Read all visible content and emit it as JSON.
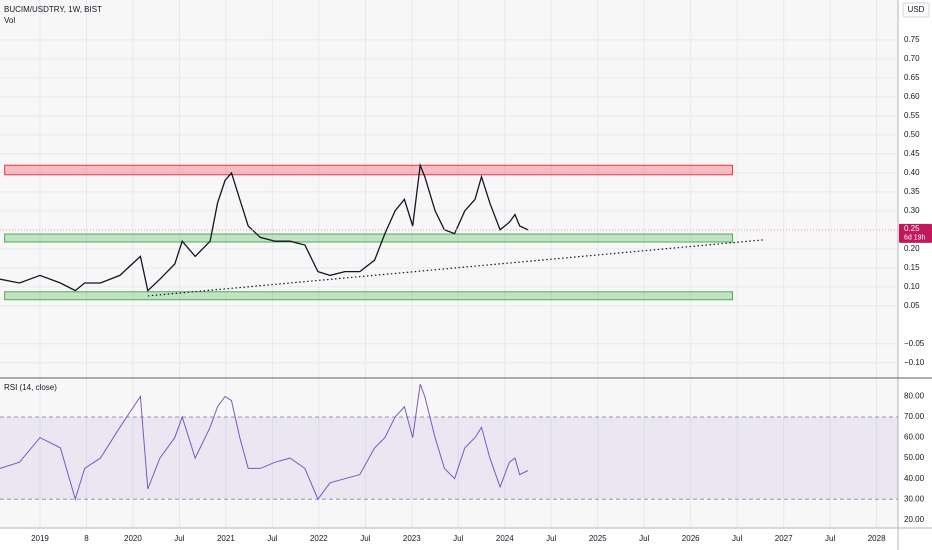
{
  "header": {
    "symbol": "BUCIM/USDTRY, 1W, BIST",
    "volume": "Vol",
    "currency": "USD"
  },
  "chart_data": [
    {
      "type": "line",
      "title": "BUCIM/USDTRY, 1W, BIST",
      "x": [
        2018.57,
        2018.78,
        2019,
        2019.22,
        2019.38,
        2019.48,
        2019.65,
        2019.86,
        2020.08,
        2020.16,
        2020.29,
        2020.45,
        2020.53,
        2020.67,
        2020.83,
        2020.91,
        2020.99,
        2021.06,
        2021.15,
        2021.24,
        2021.37,
        2021.53,
        2021.69,
        2021.85,
        2021.99,
        2022.12,
        2022.28,
        2022.44,
        2022.6,
        2022.71,
        2022.82,
        2022.92,
        2023.01,
        2023.09,
        2023.14,
        2023.25,
        2023.35,
        2023.46,
        2023.57,
        2023.68,
        2023.75,
        2023.84,
        2023.95,
        2024.05,
        2024.11,
        2024.16,
        2024.25
      ],
      "values": [
        0.12,
        0.11,
        0.13,
        0.11,
        0.09,
        0.11,
        0.11,
        0.13,
        0.18,
        0.09,
        0.12,
        0.16,
        0.22,
        0.18,
        0.22,
        0.32,
        0.38,
        0.4,
        0.33,
        0.26,
        0.23,
        0.22,
        0.22,
        0.21,
        0.14,
        0.13,
        0.14,
        0.14,
        0.17,
        0.24,
        0.3,
        0.33,
        0.26,
        0.42,
        0.39,
        0.3,
        0.25,
        0.24,
        0.3,
        0.33,
        0.39,
        0.32,
        0.25,
        0.27,
        0.29,
        0.26,
        0.25
      ],
      "color": "#131722",
      "xlim": [
        2018.57,
        2028.23
      ],
      "ylim": [
        -0.14,
        0.855
      ],
      "yticks": [
        0.75,
        {
          "value": 0.7,
          "label": "0.70"
        },
        0.65,
        {
          "value": 0.6,
          "label": "0.60"
        },
        0.55,
        {
          "value": 0.5,
          "label": "0.50"
        },
        0.45,
        {
          "value": 0.4,
          "label": "0.40"
        },
        0.35,
        {
          "value": 0.3,
          "label": "0.30"
        },
        {
          "value": 0.2,
          "label": "0.20"
        },
        0.15,
        {
          "value": 0.1,
          "label": "0.10"
        },
        0.05,
        {
          "value": -0.05,
          "label": "−0.05"
        },
        {
          "value": -0.1,
          "label": "−0.10"
        }
      ],
      "zones": [
        {
          "from": 0.395,
          "to": 0.42,
          "x": [
            2018.62,
            2026.45
          ],
          "color": "#f23645"
        },
        {
          "from": 0.218,
          "to": 0.239,
          "x": [
            2018.62,
            2026.45
          ],
          "color": "#4caf50"
        },
        {
          "from": 0.066,
          "to": 0.087,
          "x": [
            2018.62,
            2026.45
          ],
          "color": "#4caf50"
        }
      ],
      "trendline": {
        "x": [
          2020.16,
          2026.8
        ],
        "values": [
          0.076,
          0.224
        ]
      },
      "last_price": {
        "value": 0.25,
        "label": "0.25"
      },
      "countdown": "6d 19h"
    },
    {
      "type": "line",
      "title": "RSI (14, close)",
      "x": [
        2018.57,
        2018.78,
        2019,
        2019.22,
        2019.38,
        2019.48,
        2019.65,
        2019.86,
        2020.08,
        2020.16,
        2020.29,
        2020.45,
        2020.53,
        2020.67,
        2020.83,
        2020.91,
        2020.99,
        2021.06,
        2021.15,
        2021.24,
        2021.37,
        2021.53,
        2021.69,
        2021.85,
        2021.99,
        2022.12,
        2022.28,
        2022.44,
        2022.6,
        2022.71,
        2022.82,
        2022.92,
        2023.01,
        2023.09,
        2023.14,
        2023.25,
        2023.35,
        2023.46,
        2023.57,
        2023.68,
        2023.75,
        2023.84,
        2023.95,
        2024.05,
        2024.11,
        2024.16,
        2024.25
      ],
      "values": [
        45,
        48,
        60,
        55,
        30,
        45,
        50,
        65,
        80,
        35,
        50,
        60,
        70,
        50,
        65,
        75,
        80,
        78,
        60,
        45,
        45,
        48,
        50,
        45,
        30,
        38,
        40,
        42,
        55,
        60,
        70,
        75,
        60,
        86,
        80,
        60,
        45,
        40,
        55,
        60,
        65,
        50,
        36,
        48,
        50,
        42,
        44
      ],
      "color": "#7e57c2",
      "band": [
        30,
        70
      ],
      "xlim": [
        2018.57,
        2028.23
      ],
      "ylim": [
        16,
        89
      ],
      "yticks": [
        {
          "value": 80,
          "label": "80.00"
        },
        {
          "value": 70,
          "label": "70.00"
        },
        {
          "value": 60,
          "label": "60.00"
        },
        {
          "value": 50,
          "label": "50.00"
        },
        {
          "value": 40,
          "label": "40.00"
        },
        {
          "value": 30,
          "label": "30.00"
        },
        {
          "value": 20,
          "label": "20.00"
        }
      ],
      "xticks": [
        2019,
        {
          "value": 2019.5,
          "label": "8"
        },
        2020,
        {
          "value": 2020.5,
          "label": "Jul"
        },
        2021,
        {
          "value": 2021.5,
          "label": "Jul"
        },
        2022,
        {
          "value": 2022.5,
          "label": "Jul"
        },
        2023,
        {
          "value": 2023.5,
          "label": "Jul"
        },
        2024,
        {
          "value": 2024.5,
          "label": "Jul"
        },
        2025,
        {
          "value": 2025.5,
          "label": "Jul"
        },
        2026,
        {
          "value": 2026.5,
          "label": "Jul"
        },
        2027,
        {
          "value": 2027.5,
          "label": "Jul"
        },
        2028
      ]
    }
  ]
}
